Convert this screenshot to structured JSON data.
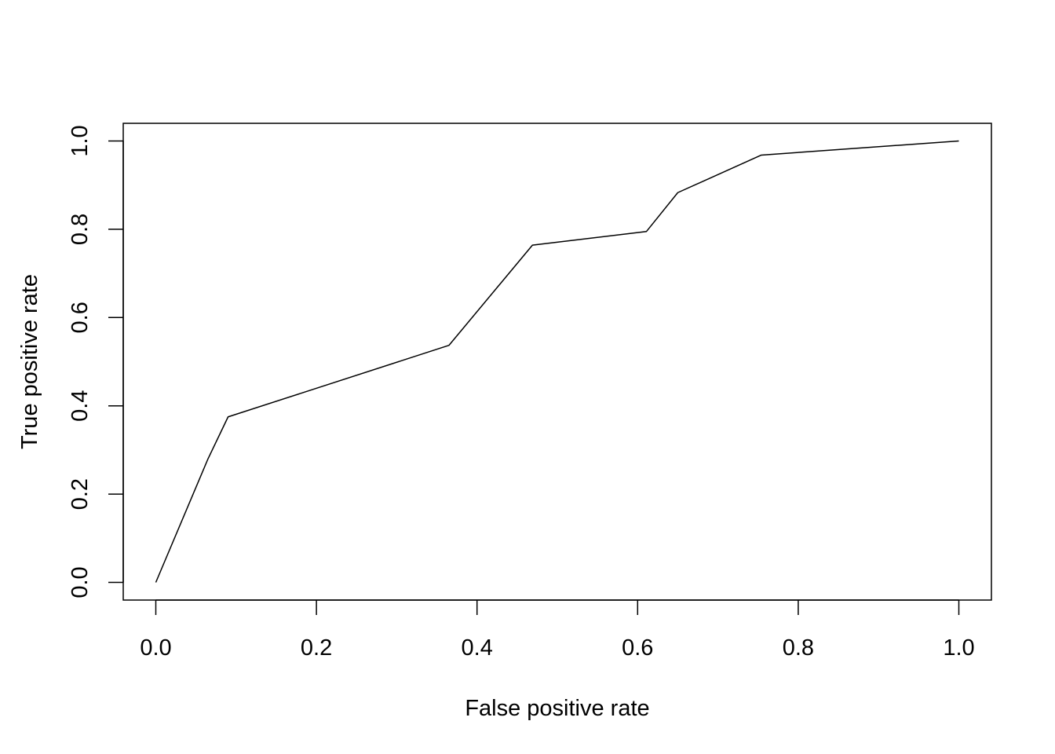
{
  "chart_data": {
    "type": "line",
    "title": "",
    "xlabel": "False positive rate",
    "ylabel": "True positive rate",
    "xlim": [
      0,
      1
    ],
    "ylim": [
      0,
      1
    ],
    "x_ticks": [
      0,
      0.2,
      0.4,
      0.6,
      0.8,
      1
    ],
    "x_tick_labels": [
      "0.0",
      "0.2",
      "0.4",
      "0.6",
      "0.8",
      "1.0"
    ],
    "y_ticks": [
      0,
      0.2,
      0.4,
      0.6,
      0.8,
      1
    ],
    "y_tick_labels": [
      "0.0",
      "0.2",
      "0.4",
      "0.6",
      "0.8",
      "1.0"
    ],
    "grid": false,
    "legend": "none",
    "line_color": "#000000",
    "series": [
      {
        "x": [
          0.0,
          0.065,
          0.09,
          0.365,
          0.469,
          0.611,
          0.65,
          0.754,
          1.0
        ],
        "y": [
          0.0,
          0.28,
          0.375,
          0.537,
          0.764,
          0.795,
          0.883,
          0.968,
          1.0
        ]
      }
    ]
  }
}
